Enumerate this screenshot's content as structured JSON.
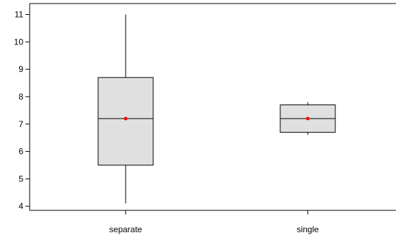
{
  "chart_data": {
    "type": "boxplot",
    "categories": [
      "separate",
      "single"
    ],
    "boxes": [
      {
        "category": "separate",
        "whisker_low": 4.1,
        "q1": 5.5,
        "median": 7.2,
        "q3": 8.7,
        "whisker_high": 11.0,
        "mean": 7.2
      },
      {
        "category": "single",
        "whisker_low": 6.6,
        "q1": 6.7,
        "median": 7.2,
        "q3": 7.7,
        "whisker_high": 7.8,
        "mean": 7.2
      }
    ],
    "title": "",
    "xlabel": "",
    "ylabel": "",
    "ylim": [
      3.85,
      11.4
    ],
    "yticks": [
      4,
      5,
      6,
      7,
      8,
      9,
      10,
      11
    ],
    "ytick_labels": [
      "4",
      "5",
      "6",
      "7",
      "8",
      "9",
      "10",
      "11"
    ],
    "grid": false,
    "legend": "none",
    "colors": {
      "box_fill": "#e0e0e0",
      "box_stroke": "#000000",
      "mean_marker": "#ff0000",
      "axis": "#000000"
    }
  }
}
